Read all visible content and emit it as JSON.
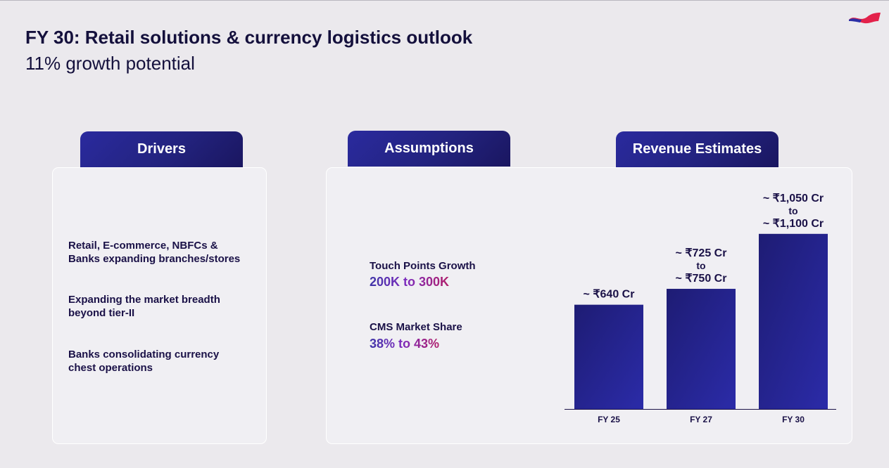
{
  "header": {
    "title": "FY 30: Retail solutions & currency logistics outlook",
    "subtitle": "11% growth potential"
  },
  "brand": {
    "logo_icon": "wave-logo-icon",
    "accent": "#e3224b",
    "primary": "#23237f"
  },
  "drivers": {
    "tab_label": "Drivers",
    "items": [
      {
        "line1": "Retail, E-commerce, NBFCs &",
        "line2": "Banks expanding branches/stores"
      },
      {
        "line1": "Expanding the market breadth",
        "line2": "beyond tier-II"
      },
      {
        "line1": "Banks consolidating currency",
        "line2": "chest operations"
      }
    ]
  },
  "assumptions": {
    "tab_label": "Assumptions",
    "items": [
      {
        "label": "Touch Points Growth",
        "value": "200K to 300K"
      },
      {
        "label": "CMS Market Share",
        "value": "38% to 43%"
      }
    ]
  },
  "revenue": {
    "tab_label": "Revenue Estimates"
  },
  "chart_data": {
    "type": "bar",
    "title": "Revenue Estimates",
    "categories": [
      "FY 25",
      "FY 27",
      "FY 30"
    ],
    "values": [
      640,
      737.5,
      1075
    ],
    "ranges": [
      [
        640,
        640
      ],
      [
        725,
        750
      ],
      [
        1050,
        1100
      ]
    ],
    "data_labels": [
      [
        "~ ₹640 Cr"
      ],
      [
        "~ ₹725 Cr",
        "to",
        "~ ₹750 Cr"
      ],
      [
        "~ ₹1,050 Cr",
        "to",
        "~ ₹1,100 Cr"
      ]
    ],
    "unit": "₹ Cr",
    "xlabel": "",
    "ylabel": "",
    "ylim": [
      0,
      1100
    ],
    "grid": false,
    "bar_color": "#23237f"
  }
}
